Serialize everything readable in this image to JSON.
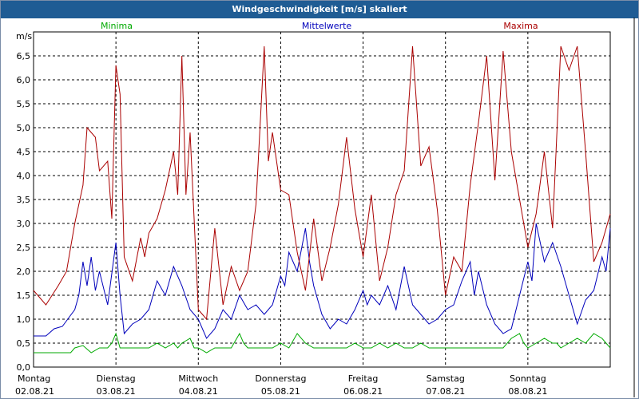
{
  "window": {
    "title": "Windgeschwindigkeit [m/s] skaliert"
  },
  "colors": {
    "minima": "#00aa00",
    "mittel": "#0000bb",
    "maxima": "#aa0000",
    "grid": "#000000",
    "titlebar": "#1f5c94"
  },
  "chart_data": {
    "type": "line",
    "title": "Windgeschwindigkeit [m/s] skaliert",
    "ylabel": "m/s",
    "xlabel": "",
    "ylim": [
      0,
      7.0
    ],
    "yticks": [
      "0,0",
      "0,5",
      "1,0",
      "1,5",
      "2,0",
      "2,5",
      "3,0",
      "3,5",
      "4,0",
      "4,5",
      "5,0",
      "5,5",
      "6,0",
      "6,5"
    ],
    "ytick_values": [
      0,
      0.5,
      1.0,
      1.5,
      2.0,
      2.5,
      3.0,
      3.5,
      4.0,
      4.5,
      5.0,
      5.5,
      6.0,
      6.5
    ],
    "grid": true,
    "x_days": [
      {
        "day": "Montag",
        "date": "02.08.21"
      },
      {
        "day": "Dienstag",
        "date": "03.08.21"
      },
      {
        "day": "Mittwoch",
        "date": "04.08.21"
      },
      {
        "day": "Donnerstag",
        "date": "05.08.21"
      },
      {
        "day": "Freitag",
        "date": "06.08.21"
      },
      {
        "day": "Samstag",
        "date": "07.08.21"
      },
      {
        "day": "Sonntag",
        "date": "08.08.21"
      }
    ],
    "x_range_days": [
      0,
      7
    ],
    "series": [
      {
        "name": "Minima",
        "color": "#00aa00",
        "points": [
          [
            0,
            0.3
          ],
          [
            0.15,
            0.3
          ],
          [
            0.3,
            0.3
          ],
          [
            0.45,
            0.3
          ],
          [
            0.5,
            0.4
          ],
          [
            0.6,
            0.45
          ],
          [
            0.7,
            0.3
          ],
          [
            0.8,
            0.4
          ],
          [
            0.9,
            0.4
          ],
          [
            0.95,
            0.5
          ],
          [
            1.0,
            0.7
          ],
          [
            1.05,
            0.4
          ],
          [
            1.1,
            0.4
          ],
          [
            1.3,
            0.4
          ],
          [
            1.4,
            0.4
          ],
          [
            1.5,
            0.5
          ],
          [
            1.6,
            0.4
          ],
          [
            1.7,
            0.5
          ],
          [
            1.75,
            0.4
          ],
          [
            1.8,
            0.5
          ],
          [
            1.9,
            0.6
          ],
          [
            1.95,
            0.4
          ],
          [
            2.0,
            0.4
          ],
          [
            2.1,
            0.3
          ],
          [
            2.2,
            0.4
          ],
          [
            2.3,
            0.4
          ],
          [
            2.4,
            0.4
          ],
          [
            2.5,
            0.7
          ],
          [
            2.55,
            0.5
          ],
          [
            2.6,
            0.4
          ],
          [
            2.8,
            0.4
          ],
          [
            2.9,
            0.4
          ],
          [
            3.0,
            0.5
          ],
          [
            3.1,
            0.4
          ],
          [
            3.2,
            0.7
          ],
          [
            3.3,
            0.5
          ],
          [
            3.4,
            0.4
          ],
          [
            3.5,
            0.4
          ],
          [
            3.7,
            0.4
          ],
          [
            3.8,
            0.4
          ],
          [
            3.9,
            0.5
          ],
          [
            4.0,
            0.4
          ],
          [
            4.1,
            0.4
          ],
          [
            4.2,
            0.5
          ],
          [
            4.3,
            0.4
          ],
          [
            4.4,
            0.5
          ],
          [
            4.5,
            0.4
          ],
          [
            4.6,
            0.4
          ],
          [
            4.7,
            0.5
          ],
          [
            4.8,
            0.4
          ],
          [
            4.9,
            0.4
          ],
          [
            5.0,
            0.4
          ],
          [
            5.1,
            0.4
          ],
          [
            5.2,
            0.4
          ],
          [
            5.3,
            0.4
          ],
          [
            5.4,
            0.4
          ],
          [
            5.5,
            0.4
          ],
          [
            5.6,
            0.4
          ],
          [
            5.7,
            0.4
          ],
          [
            5.8,
            0.6
          ],
          [
            5.9,
            0.7
          ],
          [
            5.95,
            0.5
          ],
          [
            6.0,
            0.4
          ],
          [
            6.1,
            0.5
          ],
          [
            6.2,
            0.6
          ],
          [
            6.3,
            0.5
          ],
          [
            6.35,
            0.5
          ],
          [
            6.4,
            0.4
          ],
          [
            6.5,
            0.5
          ],
          [
            6.6,
            0.6
          ],
          [
            6.7,
            0.5
          ],
          [
            6.8,
            0.7
          ],
          [
            6.9,
            0.6
          ],
          [
            6.95,
            0.5
          ],
          [
            7.0,
            0.4
          ]
        ]
      },
      {
        "name": "Mittelwerte",
        "color": "#0000bb",
        "points": [
          [
            0,
            0.65
          ],
          [
            0.15,
            0.65
          ],
          [
            0.25,
            0.8
          ],
          [
            0.35,
            0.85
          ],
          [
            0.5,
            1.2
          ],
          [
            0.55,
            1.5
          ],
          [
            0.6,
            2.2
          ],
          [
            0.65,
            1.7
          ],
          [
            0.7,
            2.3
          ],
          [
            0.75,
            1.6
          ],
          [
            0.8,
            2.0
          ],
          [
            0.9,
            1.3
          ],
          [
            1.0,
            2.6
          ],
          [
            1.05,
            1.5
          ],
          [
            1.1,
            0.7
          ],
          [
            1.2,
            0.9
          ],
          [
            1.3,
            1.0
          ],
          [
            1.4,
            1.2
          ],
          [
            1.5,
            1.8
          ],
          [
            1.6,
            1.5
          ],
          [
            1.7,
            2.1
          ],
          [
            1.8,
            1.7
          ],
          [
            1.9,
            1.2
          ],
          [
            2.0,
            1.0
          ],
          [
            2.1,
            0.6
          ],
          [
            2.2,
            0.8
          ],
          [
            2.3,
            1.2
          ],
          [
            2.4,
            1.0
          ],
          [
            2.5,
            1.5
          ],
          [
            2.6,
            1.2
          ],
          [
            2.7,
            1.3
          ],
          [
            2.8,
            1.1
          ],
          [
            2.9,
            1.3
          ],
          [
            3.0,
            1.9
          ],
          [
            3.05,
            1.7
          ],
          [
            3.1,
            2.4
          ],
          [
            3.2,
            2.0
          ],
          [
            3.3,
            2.9
          ],
          [
            3.35,
            2.2
          ],
          [
            3.4,
            1.7
          ],
          [
            3.5,
            1.1
          ],
          [
            3.6,
            0.8
          ],
          [
            3.7,
            1.0
          ],
          [
            3.8,
            0.9
          ],
          [
            3.9,
            1.2
          ],
          [
            4.0,
            1.6
          ],
          [
            4.05,
            1.3
          ],
          [
            4.1,
            1.5
          ],
          [
            4.2,
            1.3
          ],
          [
            4.3,
            1.7
          ],
          [
            4.4,
            1.2
          ],
          [
            4.5,
            2.1
          ],
          [
            4.6,
            1.3
          ],
          [
            4.7,
            1.1
          ],
          [
            4.8,
            0.9
          ],
          [
            4.9,
            1.0
          ],
          [
            5.0,
            1.2
          ],
          [
            5.1,
            1.3
          ],
          [
            5.2,
            1.8
          ],
          [
            5.3,
            2.2
          ],
          [
            5.35,
            1.5
          ],
          [
            5.4,
            2.0
          ],
          [
            5.5,
            1.3
          ],
          [
            5.6,
            0.9
          ],
          [
            5.7,
            0.7
          ],
          [
            5.8,
            0.8
          ],
          [
            5.9,
            1.5
          ],
          [
            6.0,
            2.2
          ],
          [
            6.05,
            1.8
          ],
          [
            6.1,
            3.0
          ],
          [
            6.2,
            2.2
          ],
          [
            6.3,
            2.6
          ],
          [
            6.4,
            2.1
          ],
          [
            6.5,
            1.5
          ],
          [
            6.6,
            0.9
          ],
          [
            6.7,
            1.4
          ],
          [
            6.8,
            1.6
          ],
          [
            6.9,
            2.3
          ],
          [
            6.95,
            2.0
          ],
          [
            7.0,
            2.9
          ]
        ]
      },
      {
        "name": "Maxima",
        "color": "#aa0000",
        "points": [
          [
            0,
            1.6
          ],
          [
            0.15,
            1.3
          ],
          [
            0.3,
            1.7
          ],
          [
            0.4,
            2.0
          ],
          [
            0.5,
            3.0
          ],
          [
            0.6,
            3.8
          ],
          [
            0.65,
            5.0
          ],
          [
            0.75,
            4.8
          ],
          [
            0.8,
            4.1
          ],
          [
            0.9,
            4.3
          ],
          [
            0.95,
            3.1
          ],
          [
            1.0,
            6.3
          ],
          [
            1.05,
            5.7
          ],
          [
            1.1,
            2.3
          ],
          [
            1.2,
            1.8
          ],
          [
            1.3,
            2.7
          ],
          [
            1.35,
            2.3
          ],
          [
            1.4,
            2.8
          ],
          [
            1.5,
            3.1
          ],
          [
            1.6,
            3.7
          ],
          [
            1.7,
            4.5
          ],
          [
            1.75,
            3.6
          ],
          [
            1.8,
            6.5
          ],
          [
            1.85,
            3.6
          ],
          [
            1.9,
            4.9
          ],
          [
            2.0,
            1.2
          ],
          [
            2.1,
            1.0
          ],
          [
            2.2,
            2.9
          ],
          [
            2.3,
            1.3
          ],
          [
            2.4,
            2.1
          ],
          [
            2.5,
            1.6
          ],
          [
            2.6,
            2.0
          ],
          [
            2.7,
            3.4
          ],
          [
            2.8,
            6.7
          ],
          [
            2.85,
            4.3
          ],
          [
            2.9,
            4.9
          ],
          [
            3.0,
            3.7
          ],
          [
            3.1,
            3.6
          ],
          [
            3.2,
            2.4
          ],
          [
            3.3,
            1.6
          ],
          [
            3.4,
            3.1
          ],
          [
            3.5,
            1.8
          ],
          [
            3.6,
            2.5
          ],
          [
            3.7,
            3.4
          ],
          [
            3.8,
            4.8
          ],
          [
            3.9,
            3.3
          ],
          [
            4.0,
            2.3
          ],
          [
            4.1,
            3.6
          ],
          [
            4.2,
            1.8
          ],
          [
            4.3,
            2.5
          ],
          [
            4.4,
            3.6
          ],
          [
            4.5,
            4.1
          ],
          [
            4.6,
            6.7
          ],
          [
            4.7,
            4.2
          ],
          [
            4.8,
            4.6
          ],
          [
            4.9,
            3.3
          ],
          [
            5.0,
            1.5
          ],
          [
            5.1,
            2.3
          ],
          [
            5.2,
            2.0
          ],
          [
            5.3,
            3.8
          ],
          [
            5.4,
            5.1
          ],
          [
            5.5,
            6.5
          ],
          [
            5.6,
            3.9
          ],
          [
            5.7,
            6.6
          ],
          [
            5.8,
            4.5
          ],
          [
            5.9,
            3.5
          ],
          [
            6.0,
            2.5
          ],
          [
            6.1,
            3.2
          ],
          [
            6.2,
            4.5
          ],
          [
            6.3,
            2.9
          ],
          [
            6.4,
            6.7
          ],
          [
            6.5,
            6.2
          ],
          [
            6.6,
            6.7
          ],
          [
            6.7,
            4.5
          ],
          [
            6.8,
            2.2
          ],
          [
            6.9,
            2.6
          ],
          [
            7.0,
            3.2
          ]
        ]
      }
    ]
  }
}
